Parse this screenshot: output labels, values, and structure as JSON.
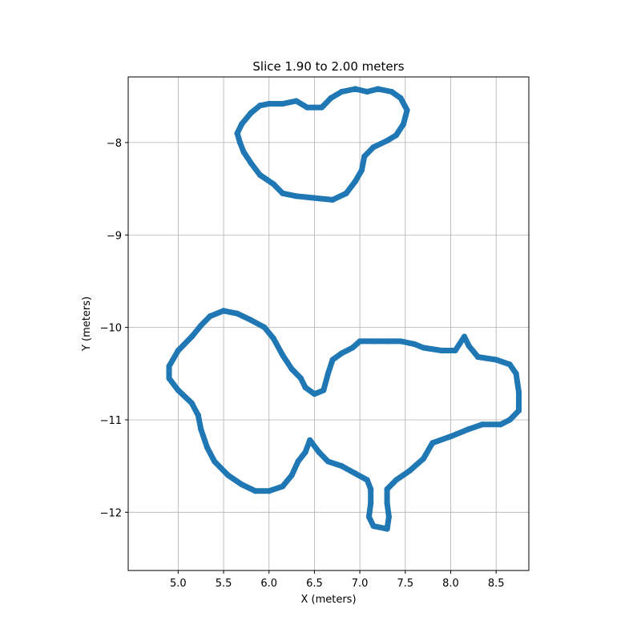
{
  "chart_data": {
    "type": "scatter",
    "title": "Slice 1.90 to 2.00 meters",
    "xlabel": "X (meters)",
    "ylabel": "Y (meters)",
    "xlim": [
      4.45,
      8.86
    ],
    "ylim": [
      -12.63,
      -7.29
    ],
    "xticks": [
      5.0,
      5.5,
      6.0,
      6.5,
      7.0,
      7.5,
      8.0,
      8.5
    ],
    "xtick_labels": [
      "5.0",
      "5.5",
      "6.0",
      "6.5",
      "7.0",
      "7.5",
      "8.0",
      "8.5"
    ],
    "yticks": [
      -8,
      -9,
      -10,
      -11,
      -12
    ],
    "ytick_labels": [
      "−8",
      "−9",
      "−10",
      "−11",
      "−12"
    ],
    "grid": true,
    "marker_color": "#1f77b4",
    "series": [
      {
        "values": [
          [
            6.42,
            -7.62
          ],
          [
            6.3,
            -7.55
          ],
          [
            6.15,
            -7.58
          ],
          [
            6.0,
            -7.58
          ],
          [
            5.9,
            -7.6
          ],
          [
            5.8,
            -7.68
          ],
          [
            5.7,
            -7.8
          ],
          [
            5.65,
            -7.9
          ],
          [
            5.68,
            -8.0
          ],
          [
            5.72,
            -8.1
          ],
          [
            5.8,
            -8.22
          ],
          [
            5.9,
            -8.35
          ],
          [
            6.05,
            -8.45
          ],
          [
            6.15,
            -8.55
          ],
          [
            6.3,
            -8.58
          ],
          [
            6.5,
            -8.6
          ],
          [
            6.7,
            -8.62
          ],
          [
            6.85,
            -8.55
          ],
          [
            6.95,
            -8.42
          ],
          [
            7.02,
            -8.3
          ],
          [
            7.05,
            -8.15
          ],
          [
            7.15,
            -8.05
          ],
          [
            7.3,
            -7.98
          ],
          [
            7.4,
            -7.92
          ],
          [
            7.48,
            -7.8
          ],
          [
            7.52,
            -7.65
          ],
          [
            7.45,
            -7.52
          ],
          [
            7.35,
            -7.45
          ],
          [
            7.2,
            -7.42
          ],
          [
            7.08,
            -7.45
          ],
          [
            6.95,
            -7.42
          ],
          [
            6.8,
            -7.45
          ],
          [
            6.68,
            -7.52
          ],
          [
            6.6,
            -7.6
          ],
          [
            6.58,
            -7.62
          ],
          [
            6.5,
            -7.62
          ],
          [
            6.42,
            -7.62
          ]
        ]
      },
      {
        "values": [
          [
            5.5,
            -9.82
          ],
          [
            5.35,
            -9.88
          ],
          [
            5.25,
            -9.98
          ],
          [
            5.15,
            -10.1
          ],
          [
            5.0,
            -10.25
          ],
          [
            4.9,
            -10.42
          ],
          [
            4.9,
            -10.55
          ],
          [
            5.0,
            -10.68
          ],
          [
            5.15,
            -10.82
          ],
          [
            5.22,
            -10.95
          ],
          [
            5.25,
            -11.1
          ],
          [
            5.32,
            -11.3
          ],
          [
            5.4,
            -11.45
          ],
          [
            5.55,
            -11.6
          ],
          [
            5.7,
            -11.7
          ],
          [
            5.85,
            -11.77
          ],
          [
            6.0,
            -11.77
          ],
          [
            6.15,
            -11.72
          ],
          [
            6.25,
            -11.6
          ],
          [
            6.32,
            -11.45
          ],
          [
            6.4,
            -11.35
          ],
          [
            6.45,
            -11.22
          ],
          [
            6.55,
            -11.35
          ],
          [
            6.65,
            -11.45
          ],
          [
            6.8,
            -11.5
          ],
          [
            6.95,
            -11.58
          ],
          [
            7.08,
            -11.65
          ],
          [
            7.12,
            -11.75
          ],
          [
            7.12,
            -11.9
          ],
          [
            7.1,
            -12.05
          ],
          [
            7.15,
            -12.15
          ],
          [
            7.3,
            -12.18
          ],
          [
            7.32,
            -12.05
          ],
          [
            7.3,
            -11.9
          ],
          [
            7.3,
            -11.75
          ],
          [
            7.4,
            -11.65
          ],
          [
            7.55,
            -11.55
          ],
          [
            7.7,
            -11.42
          ],
          [
            7.8,
            -11.25
          ],
          [
            8.0,
            -11.18
          ],
          [
            8.2,
            -11.1
          ],
          [
            8.35,
            -11.05
          ],
          [
            8.55,
            -11.05
          ],
          [
            8.65,
            -11.0
          ],
          [
            8.75,
            -10.9
          ],
          [
            8.75,
            -10.7
          ],
          [
            8.72,
            -10.5
          ],
          [
            8.65,
            -10.4
          ],
          [
            8.5,
            -10.35
          ],
          [
            8.3,
            -10.32
          ],
          [
            8.2,
            -10.2
          ],
          [
            8.15,
            -10.1
          ],
          [
            8.05,
            -10.25
          ],
          [
            7.9,
            -10.25
          ],
          [
            7.7,
            -10.22
          ],
          [
            7.6,
            -10.18
          ],
          [
            7.45,
            -10.15
          ],
          [
            7.3,
            -10.15
          ],
          [
            7.15,
            -10.15
          ],
          [
            7.0,
            -10.15
          ],
          [
            6.92,
            -10.22
          ],
          [
            6.8,
            -10.28
          ],
          [
            6.7,
            -10.35
          ],
          [
            6.65,
            -10.5
          ],
          [
            6.6,
            -10.68
          ],
          [
            6.5,
            -10.72
          ],
          [
            6.4,
            -10.65
          ],
          [
            6.35,
            -10.55
          ],
          [
            6.25,
            -10.45
          ],
          [
            6.15,
            -10.3
          ],
          [
            6.05,
            -10.12
          ],
          [
            5.95,
            -10.0
          ],
          [
            5.8,
            -9.92
          ],
          [
            5.65,
            -9.85
          ],
          [
            5.5,
            -9.82
          ]
        ]
      }
    ]
  }
}
